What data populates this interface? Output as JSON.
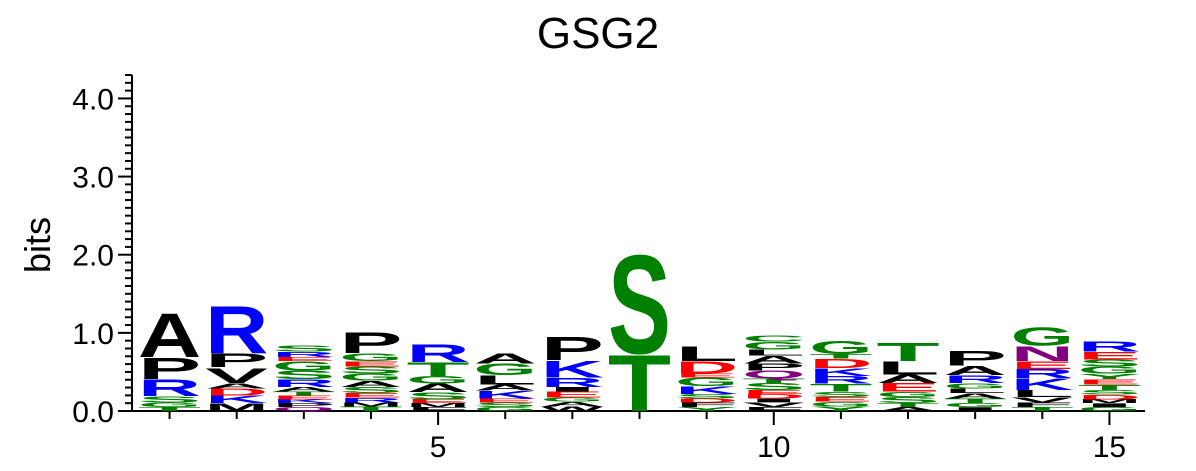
{
  "chart_data": {
    "type": "sequence-logo",
    "title": "GSG2",
    "ylabel": "bits",
    "ylim": [
      0,
      4.3
    ],
    "y_ticks": [
      "0.0",
      "1.0",
      "2.0",
      "3.0",
      "4.0"
    ],
    "x_ticks": [
      "5",
      "10",
      "15"
    ],
    "x_tick_positions": [
      5,
      10,
      15
    ],
    "positions": [
      1,
      2,
      3,
      4,
      5,
      6,
      7,
      8,
      9,
      10,
      11,
      12,
      13,
      14,
      15
    ],
    "colors": {
      "A": "#000000",
      "P": "#000000",
      "L": "#000000",
      "V": "#000000",
      "M": "#000000",
      "I": "#000000",
      "W": "#000000",
      "F": "#000000",
      "R": "#0000ff",
      "K": "#0000ff",
      "H": "#0000ff",
      "S": "#008000",
      "T": "#008000",
      "G": "#008000",
      "Y": "#008000",
      "C": "#008000",
      "D": "#ff0000",
      "E": "#ff0000",
      "N": "#800080",
      "Q": "#800080"
    },
    "stacks": [
      [
        [
          "T",
          0.05
        ],
        [
          "G",
          0.06
        ],
        [
          "S",
          0.08
        ],
        [
          "R",
          0.22
        ],
        [
          "P",
          0.28
        ],
        [
          "A",
          0.58
        ]
      ],
      [
        [
          "M",
          0.1
        ],
        [
          "K",
          0.1
        ],
        [
          "D",
          0.09
        ],
        [
          "A",
          0.07
        ],
        [
          "V",
          0.2
        ],
        [
          "P",
          0.18
        ],
        [
          "R",
          0.62
        ]
      ],
      [
        [
          "Q",
          0.05
        ],
        [
          "P",
          0.05
        ],
        [
          "K",
          0.05
        ],
        [
          "E",
          0.05
        ],
        [
          "T",
          0.05
        ],
        [
          "A",
          0.06
        ],
        [
          "R",
          0.1
        ],
        [
          "S",
          0.11
        ],
        [
          "G",
          0.12
        ],
        [
          "E",
          0.05
        ],
        [
          "R",
          0.07
        ],
        [
          "S",
          0.08
        ]
      ],
      [
        [
          "T",
          0.06
        ],
        [
          "M",
          0.05
        ],
        [
          "R",
          0.06
        ],
        [
          "E",
          0.06
        ],
        [
          "S",
          0.08
        ],
        [
          "A",
          0.08
        ],
        [
          "G",
          0.09
        ],
        [
          "S",
          0.09
        ],
        [
          "E",
          0.07
        ],
        [
          "G",
          0.1
        ],
        [
          "P",
          0.27
        ]
      ],
      [
        [
          "F",
          0.05
        ],
        [
          "M",
          0.05
        ],
        [
          "E",
          0.05
        ],
        [
          "S",
          0.09
        ],
        [
          "A",
          0.11
        ],
        [
          "G",
          0.1
        ],
        [
          "T",
          0.18
        ],
        [
          "R",
          0.23
        ]
      ],
      [
        [
          "G",
          0.05
        ],
        [
          "S",
          0.06
        ],
        [
          "E",
          0.05
        ],
        [
          "K",
          0.1
        ],
        [
          "A",
          0.08
        ],
        [
          "L",
          0.12
        ],
        [
          "G",
          0.15
        ],
        [
          "A",
          0.14
        ]
      ],
      [
        [
          "W",
          0.06
        ],
        [
          "A",
          0.06
        ],
        [
          "G",
          0.05
        ],
        [
          "E",
          0.08
        ],
        [
          "I",
          0.06
        ],
        [
          "R",
          0.12
        ],
        [
          "K",
          0.22
        ],
        [
          "P",
          0.31
        ]
      ],
      [
        [
          "T",
          0.74
        ],
        [
          "S",
          1.3
        ]
      ],
      [
        [
          "Y",
          0.05
        ],
        [
          "F",
          0.06
        ],
        [
          "D",
          0.05
        ],
        [
          "S",
          0.06
        ],
        [
          "K",
          0.1
        ],
        [
          "G",
          0.11
        ],
        [
          "E",
          0.05
        ],
        [
          "D",
          0.16
        ],
        [
          "L",
          0.2
        ]
      ],
      [
        [
          "F",
          0.05
        ],
        [
          "V",
          0.06
        ],
        [
          "I",
          0.05
        ],
        [
          "D",
          0.06
        ],
        [
          "E",
          0.05
        ],
        [
          "S",
          0.09
        ],
        [
          "T",
          0.06
        ],
        [
          "Q",
          0.1
        ],
        [
          "P",
          0.09
        ],
        [
          "A",
          0.1
        ],
        [
          "L",
          0.08
        ],
        [
          "G",
          0.1
        ],
        [
          "C",
          0.08
        ]
      ],
      [
        [
          "Y",
          0.06
        ],
        [
          "G",
          0.06
        ],
        [
          "E",
          0.06
        ],
        [
          "S",
          0.07
        ],
        [
          "T",
          0.1
        ],
        [
          "R",
          0.1
        ],
        [
          "K",
          0.1
        ],
        [
          "D",
          0.12
        ],
        [
          "T",
          0.06
        ],
        [
          "G",
          0.17
        ]
      ],
      [
        [
          "A",
          0.05
        ],
        [
          "T",
          0.05
        ],
        [
          "S",
          0.08
        ],
        [
          "G",
          0.07
        ],
        [
          "E",
          0.11
        ],
        [
          "A",
          0.11
        ],
        [
          "L",
          0.17
        ],
        [
          "T",
          0.24
        ]
      ],
      [
        [
          "I",
          0.05
        ],
        [
          "G",
          0.05
        ],
        [
          "T",
          0.06
        ],
        [
          "A",
          0.07
        ],
        [
          "L",
          0.06
        ],
        [
          "G",
          0.07
        ],
        [
          "R",
          0.1
        ],
        [
          "A",
          0.12
        ],
        [
          "P",
          0.2
        ]
      ],
      [
        [
          "T",
          0.05
        ],
        [
          "F",
          0.06
        ],
        [
          "V",
          0.07
        ],
        [
          "L",
          0.09
        ],
        [
          "K",
          0.15
        ],
        [
          "R",
          0.12
        ],
        [
          "E",
          0.1
        ],
        [
          "N",
          0.2
        ],
        [
          "G",
          0.24
        ]
      ],
      [
        [
          "G",
          0.05
        ],
        [
          "I",
          0.05
        ],
        [
          "M",
          0.05
        ],
        [
          "D",
          0.06
        ],
        [
          "S",
          0.06
        ],
        [
          "T",
          0.07
        ],
        [
          "E",
          0.07
        ],
        [
          "Y",
          0.07
        ],
        [
          "G",
          0.09
        ],
        [
          "S",
          0.09
        ],
        [
          "E",
          0.1
        ],
        [
          "R",
          0.14
        ]
      ]
    ]
  }
}
